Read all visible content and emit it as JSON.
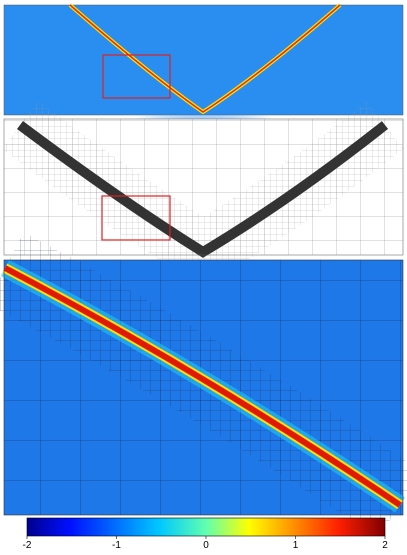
{
  "colorbar": {
    "lim": [
      -2,
      2
    ],
    "ticks": [
      -2,
      -1,
      0,
      1,
      2
    ]
  }
}
